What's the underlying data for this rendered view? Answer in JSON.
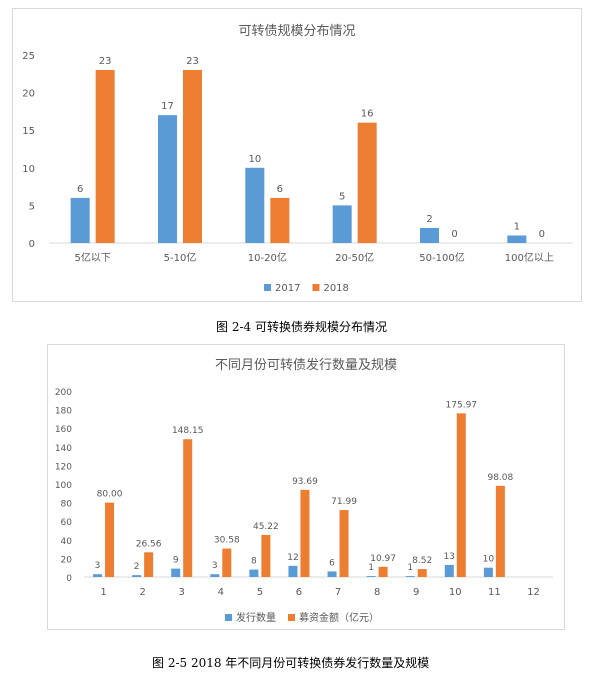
{
  "colors": {
    "series_a": "#5b9bd5",
    "series_b": "#ed7d31",
    "axis_text": "#595959",
    "title_text": "#595959",
    "axis_line": "#d9d9d9"
  },
  "captions": {
    "fig1": "图 2-4   可转换债券规模分布情况",
    "fig2": "图 2-5   2018 年不同月份可转换债券发行数量及规模"
  },
  "chart_data": [
    {
      "type": "bar",
      "title": "可转债规模分布情况",
      "categories": [
        "5亿以下",
        "5-10亿",
        "10-20亿",
        "20-50亿",
        "50-100亿",
        "100亿以上"
      ],
      "series": [
        {
          "name": "2017",
          "values": [
            6,
            17,
            10,
            5,
            2,
            1
          ],
          "labels": [
            "6",
            "17",
            "10",
            "5",
            "2",
            "1"
          ]
        },
        {
          "name": "2018",
          "values": [
            23,
            23,
            6,
            16,
            0,
            0
          ],
          "labels": [
            "23",
            "23",
            "6",
            "16",
            "0",
            "0"
          ]
        }
      ],
      "ylim": [
        0,
        25
      ],
      "yticks": [
        "0",
        "5",
        "10",
        "15",
        "20",
        "25"
      ],
      "xlabel": "",
      "ylabel": "",
      "grid": false,
      "legend": "bottom"
    },
    {
      "type": "bar",
      "title": "不同月份可转债发行数量及规模",
      "categories": [
        "1",
        "2",
        "3",
        "4",
        "5",
        "6",
        "7",
        "8",
        "9",
        "10",
        "11",
        "12"
      ],
      "series": [
        {
          "name": "发行数量",
          "values": [
            3,
            2,
            9,
            3,
            8,
            12,
            6,
            1,
            1,
            13,
            10,
            0
          ],
          "labels": [
            "3",
            "2",
            "9",
            "3",
            "8",
            "12",
            "6",
            "1",
            "1",
            "13",
            "10",
            ""
          ]
        },
        {
          "name": "募资金额（亿元）",
          "values": [
            80.0,
            26.56,
            148.15,
            30.58,
            45.22,
            93.69,
            71.99,
            10.97,
            8.52,
            175.97,
            98.08,
            0
          ],
          "labels": [
            "80.00",
            "26.56",
            "148.15",
            "30.58",
            "45.22",
            "93.69",
            "71.99",
            "10.97",
            "8.52",
            "175.97",
            "98.08",
            ""
          ]
        }
      ],
      "ylim": [
        0,
        200
      ],
      "yticks": [
        "0",
        "20",
        "40",
        "60",
        "80",
        "100",
        "120",
        "140",
        "160",
        "180",
        "200"
      ],
      "xlabel": "",
      "ylabel": "",
      "grid": false,
      "legend": "bottom"
    }
  ]
}
